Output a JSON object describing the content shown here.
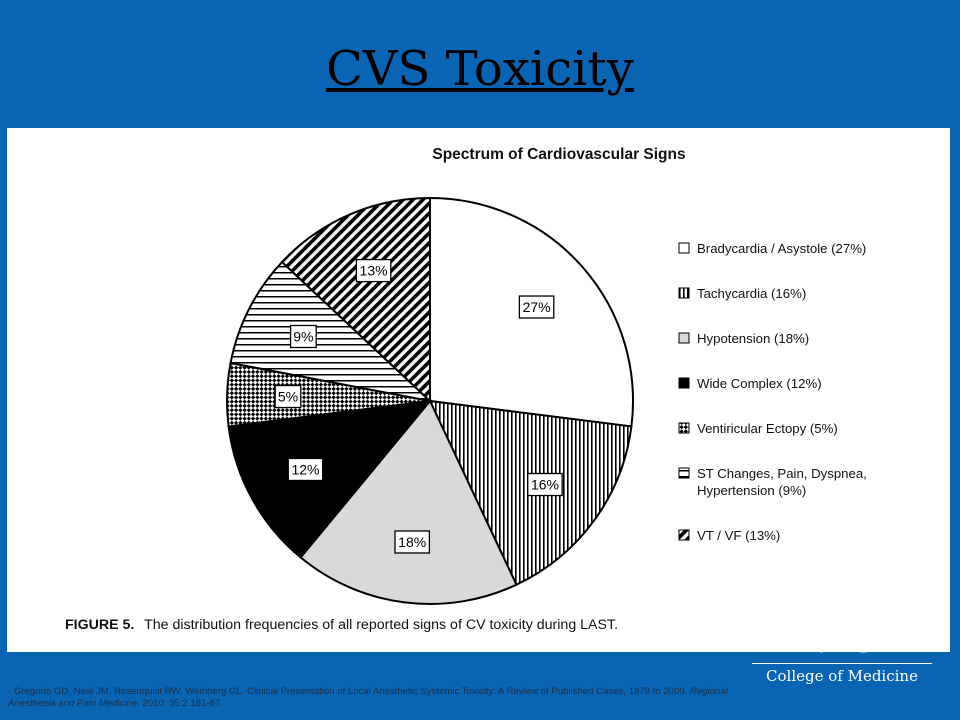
{
  "slide": {
    "title": "CVS Toxicity"
  },
  "chart_data": {
    "type": "pie",
    "title": "Spectrum of Cardiovascular Signs",
    "caption_label": "FIGURE 5.",
    "caption_text": "The distribution frequencies of all reported signs of CV toxicity during LAST.",
    "slices": [
      {
        "name": "Bradycardia / Asystole (27%)",
        "label": "27%",
        "value": 27,
        "pattern": "white"
      },
      {
        "name": "Tachycardia (16%)",
        "label": "16%",
        "value": 16,
        "pattern": "vertical-stripes"
      },
      {
        "name": "Hypotension (18%)",
        "label": "18%",
        "value": 18,
        "pattern": "light-gray"
      },
      {
        "name": "Wide Complex (12%)",
        "label": "12%",
        "value": 12,
        "pattern": "black"
      },
      {
        "name": "Ventiricular Ectopy (5%)",
        "label": "5%",
        "value": 5,
        "pattern": "checker"
      },
      {
        "name": "ST Changes, Pain, Dyspnea, Hypertension (9%)",
        "label": "9%",
        "value": 9,
        "pattern": "horizontal-stripes"
      },
      {
        "name": "VT / VF (13%)",
        "label": "13%",
        "value": 13,
        "pattern": "diagonal-stripes"
      }
    ],
    "legend": [
      {
        "lines": [
          "Bradycardia / Asystole (27%)"
        ],
        "pattern": "white"
      },
      {
        "lines": [
          "Tachycardia (16%)"
        ],
        "pattern": "vertical-stripes"
      },
      {
        "lines": [
          "Hypotension (18%)"
        ],
        "pattern": "light-gray"
      },
      {
        "lines": [
          "Wide Complex (12%)"
        ],
        "pattern": "black"
      },
      {
        "lines": [
          "Ventiricular Ectopy (5%)"
        ],
        "pattern": "checker"
      },
      {
        "lines": [
          "ST Changes, Pain, Dyspnea,",
          "Hypertension (9%)"
        ],
        "pattern": "horizontal-stripes"
      },
      {
        "lines": [
          "VT / VF (13%)"
        ],
        "pattern": "diagonal-stripes"
      }
    ],
    "legend_position": "right"
  },
  "logo": {
    "wordmark": "KENTUCKY",
    "subtitle": "College of Medicine"
  },
  "citation": {
    "prefix": "- Gregorio GD, Neal JM, Rosenquist RW, Weinberg GL. Clinical Presentation of Local Anesthetic Systemic Toxicity: A Review of Published Cases, 1979 to 2009. ",
    "journal": "Regional Anesthesia and Pain Medicine.",
    "suffix": " 2010; 35:2 181-87."
  }
}
